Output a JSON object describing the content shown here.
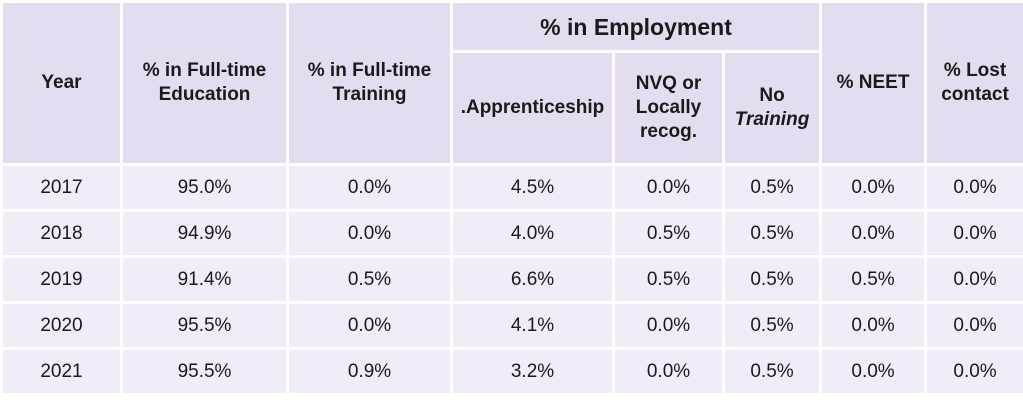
{
  "table": {
    "headers": {
      "year": "Year",
      "fulltime_education": "% in Full-time Education",
      "fulltime_training": "% in Full-time Training",
      "employment_group": "% in Employment",
      "apprenticeship": ".Apprenticeship",
      "nvq_line1": "NVQ or",
      "nvq_line2": "Locally",
      "nvq_line3": "recog.",
      "no_training_line1": "No",
      "no_training_line2": "Training",
      "neet": "% NEET",
      "lost_contact": "% Lost contact"
    },
    "rows": [
      {
        "year": "2017",
        "fte": "95.0%",
        "ftt": "0.0%",
        "appr": "4.5%",
        "nvq": "0.0%",
        "notr": "0.5%",
        "neet": "0.0%",
        "lost": "0.0%"
      },
      {
        "year": "2018",
        "fte": "94.9%",
        "ftt": "0.0%",
        "appr": "4.0%",
        "nvq": "0.5%",
        "notr": "0.5%",
        "neet": "0.0%",
        "lost": "0.0%"
      },
      {
        "year": "2019",
        "fte": "91.4%",
        "ftt": "0.5%",
        "appr": "6.6%",
        "nvq": "0.5%",
        "notr": "0.5%",
        "neet": "0.5%",
        "lost": "0.0%"
      },
      {
        "year": "2020",
        "fte": "95.5%",
        "ftt": "0.0%",
        "appr": "4.1%",
        "nvq": "0.0%",
        "notr": "0.5%",
        "neet": "0.0%",
        "lost": "0.0%"
      },
      {
        "year": "2021",
        "fte": "95.5%",
        "ftt": "0.9%",
        "appr": "3.2%",
        "nvq": "0.0%",
        "notr": "0.5%",
        "neet": "0.0%",
        "lost": "0.0%"
      }
    ]
  },
  "colors": {
    "header_bg": "#e6dcf0",
    "cell_bg": "#f2ecf8",
    "border": "#ffffff"
  }
}
